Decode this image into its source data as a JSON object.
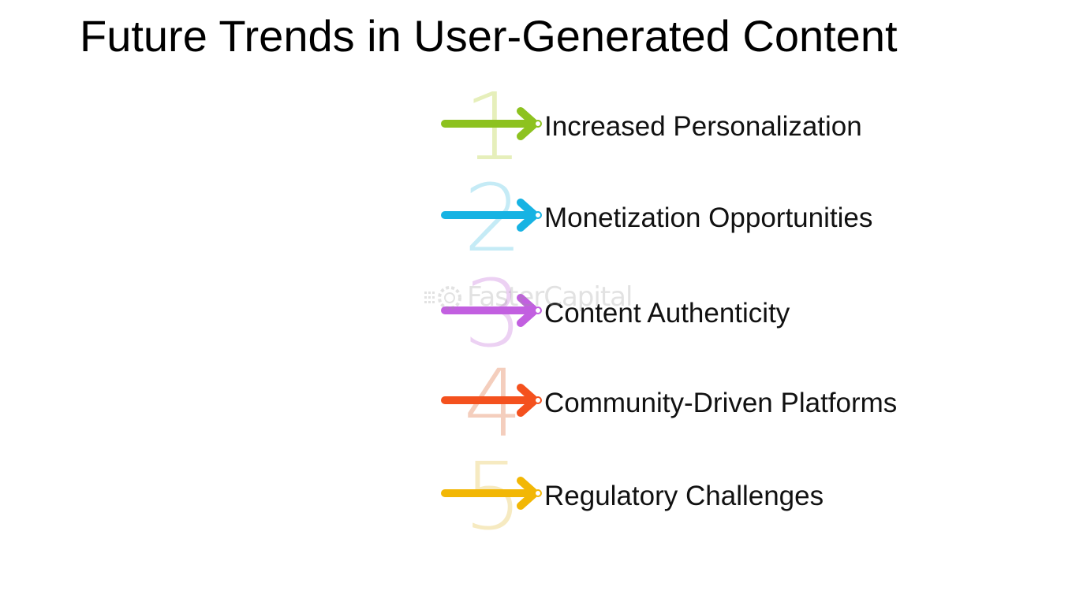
{
  "title": "Future Trends in User-Generated Content",
  "watermark": "FasterCapital",
  "trends": [
    {
      "number": "1",
      "label": "Increased Personalization",
      "color": "#8dc21f",
      "numeral_color": "#c9dc6a"
    },
    {
      "number": "2",
      "label": "Monetization Opportunities",
      "color": "#17b3e3",
      "numeral_color": "#7fd3ec"
    },
    {
      "number": "3",
      "label": "Content Authenticity",
      "color": "#c25fe0",
      "numeral_color": "#d79ae6"
    },
    {
      "number": "4",
      "label": "Community-Driven Platforms",
      "color": "#f4511e",
      "numeral_color": "#e8946e"
    },
    {
      "number": "5",
      "label": "Regulatory Challenges",
      "color": "#f2b705",
      "numeral_color": "#ecd277"
    }
  ]
}
